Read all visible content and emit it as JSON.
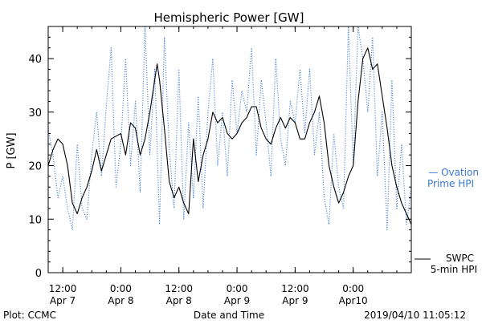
{
  "chart_data": {
    "type": "line",
    "title": "Hemispheric Power [GW]",
    "ylabel": "P [GW]",
    "xlabel": "Date and Time",
    "ylim": [
      0,
      46
    ],
    "y_ticks": [
      0,
      10,
      20,
      30,
      40
    ],
    "xlim": [
      "2019-04-07 09:00",
      "2019-04-10 12:00"
    ],
    "x_ticks": [
      {
        "time": "2019-04-07 12:00",
        "line1": "12:00",
        "line2": "Apr 7"
      },
      {
        "time": "2019-04-08 00:00",
        "line1": "0:00",
        "line2": "Apr 8"
      },
      {
        "time": "2019-04-08 12:00",
        "line1": "12:00",
        "line2": "Apr 8"
      },
      {
        "time": "2019-04-09 00:00",
        "line1": "0:00",
        "line2": "Apr 9"
      },
      {
        "time": "2019-04-09 12:00",
        "line1": "12:00",
        "line2": "Apr 9"
      },
      {
        "time": "2019-04-10 00:00",
        "line1": "0:00",
        "line2": "Apr10"
      }
    ],
    "series": [
      {
        "name": "Ovation Prime HPI",
        "style": "dotted",
        "color": "#3a78d0",
        "points": [
          [
            "2019-04-07 09:00",
            27
          ],
          [
            "2019-04-07 10:00",
            22
          ],
          [
            "2019-04-07 11:00",
            14
          ],
          [
            "2019-04-07 12:00",
            18
          ],
          [
            "2019-04-07 13:00",
            12
          ],
          [
            "2019-04-07 14:00",
            8
          ],
          [
            "2019-04-07 15:00",
            24
          ],
          [
            "2019-04-07 16:00",
            12
          ],
          [
            "2019-04-07 17:00",
            10
          ],
          [
            "2019-04-07 18:00",
            22
          ],
          [
            "2019-04-07 19:00",
            30
          ],
          [
            "2019-04-07 20:00",
            18
          ],
          [
            "2019-04-07 21:00",
            31
          ],
          [
            "2019-04-07 22:00",
            42
          ],
          [
            "2019-04-07 23:00",
            16
          ],
          [
            "2019-04-08 00:00",
            24
          ],
          [
            "2019-04-08 01:00",
            40
          ],
          [
            "2019-04-08 02:00",
            20
          ],
          [
            "2019-04-08 03:00",
            32
          ],
          [
            "2019-04-08 04:00",
            15
          ],
          [
            "2019-04-08 05:00",
            46
          ],
          [
            "2019-04-08 06:00",
            22
          ],
          [
            "2019-04-08 07:00",
            38
          ],
          [
            "2019-04-08 08:00",
            9
          ],
          [
            "2019-04-08 09:00",
            44
          ],
          [
            "2019-04-08 10:00",
            23
          ],
          [
            "2019-04-08 11:00",
            12
          ],
          [
            "2019-04-08 12:00",
            38
          ],
          [
            "2019-04-08 13:00",
            10
          ],
          [
            "2019-04-08 14:00",
            28
          ],
          [
            "2019-04-08 15:00",
            14
          ],
          [
            "2019-04-08 16:00",
            33
          ],
          [
            "2019-04-08 17:00",
            12
          ],
          [
            "2019-04-08 18:00",
            30
          ],
          [
            "2019-04-08 19:00",
            40
          ],
          [
            "2019-04-08 20:00",
            20
          ],
          [
            "2019-04-08 21:00",
            30
          ],
          [
            "2019-04-08 22:00",
            18
          ],
          [
            "2019-04-08 23:00",
            36
          ],
          [
            "2019-04-09 00:00",
            26
          ],
          [
            "2019-04-09 01:00",
            34
          ],
          [
            "2019-04-09 02:00",
            30
          ],
          [
            "2019-04-09 03:00",
            42
          ],
          [
            "2019-04-09 04:00",
            22
          ],
          [
            "2019-04-09 05:00",
            36
          ],
          [
            "2019-04-09 06:00",
            28
          ],
          [
            "2019-04-09 07:00",
            18
          ],
          [
            "2019-04-09 08:00",
            40
          ],
          [
            "2019-04-09 09:00",
            25
          ],
          [
            "2019-04-09 10:00",
            20
          ],
          [
            "2019-04-09 11:00",
            32
          ],
          [
            "2019-04-09 12:00",
            28
          ],
          [
            "2019-04-09 13:00",
            38
          ],
          [
            "2019-04-09 14:00",
            26
          ],
          [
            "2019-04-09 15:00",
            38
          ],
          [
            "2019-04-09 16:00",
            22
          ],
          [
            "2019-04-09 17:00",
            30
          ],
          [
            "2019-04-09 18:00",
            14
          ],
          [
            "2019-04-09 19:00",
            9
          ],
          [
            "2019-04-09 20:00",
            26
          ],
          [
            "2019-04-09 21:00",
            16
          ],
          [
            "2019-04-09 22:00",
            12
          ],
          [
            "2019-04-09 23:00",
            46
          ],
          [
            "2019-04-10 00:00",
            20
          ],
          [
            "2019-04-10 01:00",
            46
          ],
          [
            "2019-04-10 02:00",
            40
          ],
          [
            "2019-04-10 03:00",
            30
          ],
          [
            "2019-04-10 04:00",
            44
          ],
          [
            "2019-04-10 05:00",
            18
          ],
          [
            "2019-04-10 06:00",
            30
          ],
          [
            "2019-04-10 07:00",
            8
          ],
          [
            "2019-04-10 08:00",
            36
          ],
          [
            "2019-04-10 09:00",
            12
          ],
          [
            "2019-04-10 10:00",
            24
          ],
          [
            "2019-04-10 11:00",
            9
          ],
          [
            "2019-04-10 12:00",
            16
          ]
        ]
      },
      {
        "name": "SWPC 5-min HPI",
        "style": "solid",
        "color": "#000000",
        "points": [
          [
            "2019-04-07 09:00",
            20
          ],
          [
            "2019-04-07 10:00",
            23
          ],
          [
            "2019-04-07 11:00",
            25
          ],
          [
            "2019-04-07 12:00",
            24
          ],
          [
            "2019-04-07 13:00",
            20
          ],
          [
            "2019-04-07 14:00",
            13
          ],
          [
            "2019-04-07 15:00",
            11
          ],
          [
            "2019-04-07 16:00",
            14
          ],
          [
            "2019-04-07 17:00",
            16
          ],
          [
            "2019-04-07 18:00",
            19
          ],
          [
            "2019-04-07 19:00",
            23
          ],
          [
            "2019-04-07 20:00",
            19
          ],
          [
            "2019-04-07 21:00",
            22
          ],
          [
            "2019-04-07 22:00",
            25
          ],
          [
            "2019-04-08 00:00",
            26
          ],
          [
            "2019-04-08 01:00",
            22
          ],
          [
            "2019-04-08 02:00",
            28
          ],
          [
            "2019-04-08 03:00",
            27
          ],
          [
            "2019-04-08 04:00",
            22
          ],
          [
            "2019-04-08 05:00",
            25
          ],
          [
            "2019-04-08 06:00",
            30
          ],
          [
            "2019-04-08 07:00",
            36
          ],
          [
            "2019-04-08 07:30",
            39
          ],
          [
            "2019-04-08 08:00",
            36
          ],
          [
            "2019-04-08 09:00",
            27
          ],
          [
            "2019-04-08 10:00",
            17
          ],
          [
            "2019-04-08 11:00",
            14
          ],
          [
            "2019-04-08 12:00",
            16
          ],
          [
            "2019-04-08 13:00",
            13
          ],
          [
            "2019-04-08 14:00",
            11
          ],
          [
            "2019-04-08 15:00",
            25
          ],
          [
            "2019-04-08 16:00",
            17
          ],
          [
            "2019-04-08 17:00",
            22
          ],
          [
            "2019-04-08 18:00",
            25
          ],
          [
            "2019-04-08 19:00",
            30
          ],
          [
            "2019-04-08 20:00",
            28
          ],
          [
            "2019-04-08 21:00",
            29
          ],
          [
            "2019-04-08 22:00",
            26
          ],
          [
            "2019-04-08 23:00",
            25
          ],
          [
            "2019-04-09 00:00",
            26
          ],
          [
            "2019-04-09 01:00",
            28
          ],
          [
            "2019-04-09 02:00",
            29
          ],
          [
            "2019-04-09 03:00",
            31
          ],
          [
            "2019-04-09 04:00",
            31
          ],
          [
            "2019-04-09 05:00",
            27
          ],
          [
            "2019-04-09 06:00",
            25
          ],
          [
            "2019-04-09 07:00",
            24
          ],
          [
            "2019-04-09 08:00",
            27
          ],
          [
            "2019-04-09 09:00",
            29
          ],
          [
            "2019-04-09 10:00",
            27
          ],
          [
            "2019-04-09 11:00",
            29
          ],
          [
            "2019-04-09 12:00",
            28
          ],
          [
            "2019-04-09 13:00",
            25
          ],
          [
            "2019-04-09 14:00",
            25
          ],
          [
            "2019-04-09 15:00",
            28
          ],
          [
            "2019-04-09 16:00",
            30
          ],
          [
            "2019-04-09 17:00",
            33
          ],
          [
            "2019-04-09 18:00",
            28
          ],
          [
            "2019-04-09 19:00",
            20
          ],
          [
            "2019-04-09 20:00",
            16
          ],
          [
            "2019-04-09 21:00",
            13
          ],
          [
            "2019-04-09 22:00",
            15
          ],
          [
            "2019-04-09 23:00",
            18
          ],
          [
            "2019-04-10 00:00",
            20
          ],
          [
            "2019-04-10 01:00",
            32
          ],
          [
            "2019-04-10 02:00",
            40
          ],
          [
            "2019-04-10 03:00",
            42
          ],
          [
            "2019-04-10 04:00",
            38
          ],
          [
            "2019-04-10 05:00",
            39
          ],
          [
            "2019-04-10 06:00",
            33
          ],
          [
            "2019-04-10 07:00",
            27
          ],
          [
            "2019-04-10 08:00",
            20
          ],
          [
            "2019-04-10 09:00",
            16
          ],
          [
            "2019-04-10 10:00",
            13
          ],
          [
            "2019-04-10 11:00",
            11
          ],
          [
            "2019-04-10 12:00",
            9
          ]
        ]
      }
    ],
    "legend": [
      {
        "series": "Ovation Prime HPI",
        "line1": "— Ovation",
        "line2": "Prime HPI",
        "color": "#3a78d0"
      },
      {
        "series": "SWPC 5-min HPI",
        "line1": "SWPC",
        "line2": "5-min HPI",
        "color": "#000000"
      }
    ],
    "legend_position": "right",
    "grid": false
  },
  "footer": {
    "left": "Plot: CCMC",
    "right": "2019/04/10 11:05:12"
  }
}
